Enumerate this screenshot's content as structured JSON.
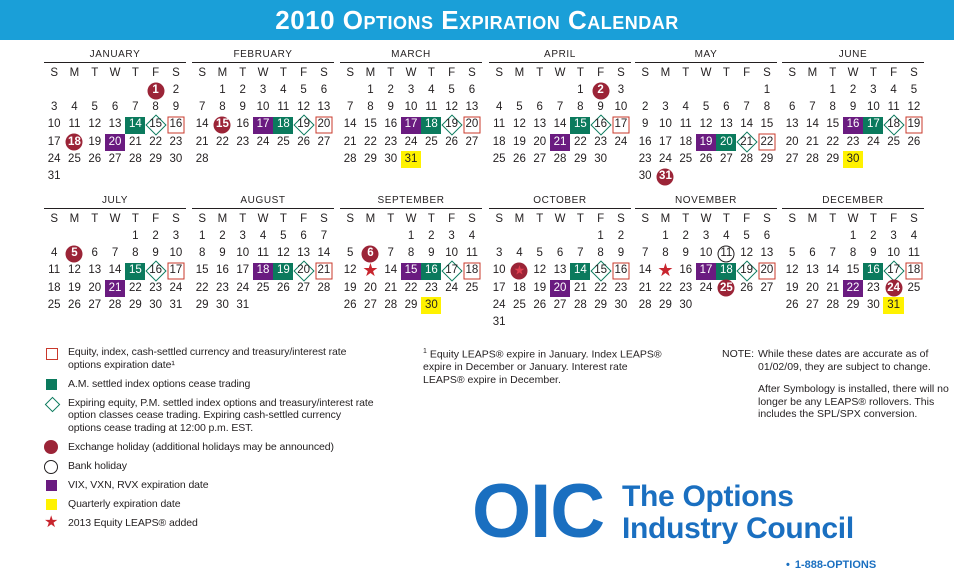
{
  "title": "2010 Options Expiration Calendar",
  "weekdays": [
    "S",
    "M",
    "T",
    "W",
    "T",
    "F",
    "S"
  ],
  "colors": {
    "banner": "#1a9fd8",
    "am_settled": "#0b7a5d",
    "vix": "#6a1b80",
    "quarterly": "#fff200",
    "holiday": "#9b2437",
    "star": "#c8252e",
    "brand": "#1a6fc0"
  },
  "months": [
    {
      "name": "JANUARY",
      "start": 5,
      "days": 31,
      "marks": {
        "1": "hol",
        "14": "sq",
        "15": "dia",
        "16": "exp",
        "18": "hol",
        "20": "pur"
      }
    },
    {
      "name": "FEBRUARY",
      "start": 1,
      "days": 28,
      "marks": {
        "15": "hol",
        "17": "pur",
        "18": "sq",
        "19": "dia",
        "20": "exp"
      }
    },
    {
      "name": "MARCH",
      "start": 1,
      "days": 31,
      "marks": {
        "17": "pur",
        "18": "sq",
        "19": "dia",
        "20": "exp",
        "31": "yel"
      }
    },
    {
      "name": "APRIL",
      "start": 4,
      "days": 30,
      "marks": {
        "2": "hol",
        "15": "sq",
        "16": "dia",
        "17": "exp",
        "21": "pur"
      }
    },
    {
      "name": "MAY",
      "start": 6,
      "days": 31,
      "marks": {
        "19": "pur",
        "20": "sq",
        "21": "dia",
        "22": "exp",
        "31": "hol"
      }
    },
    {
      "name": "JUNE",
      "start": 2,
      "days": 30,
      "marks": {
        "16": "pur",
        "17": "sq",
        "18": "dia",
        "19": "exp",
        "30": "yel"
      }
    },
    {
      "name": "JULY",
      "start": 4,
      "days": 31,
      "marks": {
        "5": "hol",
        "15": "sq",
        "16": "dia",
        "17": "exp",
        "21": "pur"
      }
    },
    {
      "name": "AUGUST",
      "start": 0,
      "days": 31,
      "marks": {
        "18": "pur",
        "19": "sq",
        "20": "dia",
        "21": "exp"
      }
    },
    {
      "name": "SEPTEMBER",
      "start": 3,
      "days": 30,
      "marks": {
        "6": "hol",
        "13": "star",
        "15": "pur",
        "16": "sq",
        "17": "dia",
        "18": "exp",
        "30": "yel"
      }
    },
    {
      "name": "OCTOBER",
      "start": 5,
      "days": 31,
      "marks": {
        "11": "star_hol",
        "14": "sq",
        "15": "dia",
        "16": "exp",
        "20": "pur"
      }
    },
    {
      "name": "NOVEMBER",
      "start": 1,
      "days": 30,
      "marks": {
        "11": "bank",
        "15": "star",
        "17": "pur",
        "18": "sq",
        "19": "dia",
        "20": "exp",
        "25": "hol"
      }
    },
    {
      "name": "DECEMBER",
      "start": 3,
      "days": 31,
      "marks": {
        "16": "sq",
        "17": "dia",
        "18": "exp",
        "22": "pur",
        "24": "hol",
        "31": "yel"
      }
    }
  ],
  "legend": [
    {
      "icon": "expiration-square-icon",
      "text": "Equity, index, cash-settled currency and treasury/interest rate options expiration date¹"
    },
    {
      "icon": "am-settled-square-icon",
      "text": "A.M. settled index options cease trading"
    },
    {
      "icon": "diamond-icon",
      "text": "Expiring equity, P.M. settled index options and treasury/interest rate option classes cease trading. Expiring cash-settled currency options cease trading at 12:00 p.m. EST."
    },
    {
      "icon": "holiday-circle-icon",
      "text": "Exchange holiday (additional holidays may be announced)"
    },
    {
      "icon": "bank-holiday-circle-icon",
      "text": "Bank holiday"
    },
    {
      "icon": "vix-square-icon",
      "text": "VIX, VXN, RVX expiration date"
    },
    {
      "icon": "quarterly-square-icon",
      "text": "Quarterly expiration date"
    },
    {
      "icon": "star-icon",
      "text": "2013 Equity LEAPS® added"
    }
  ],
  "footnote": {
    "mark": "1",
    "text": "Equity LEAPS® expire in January. Index LEAPS® expire in December or January. Interest rate LEAPS® expire in December."
  },
  "note": {
    "label": "NOTE:",
    "p1": "While these dates are accurate as of 01/02/09, they are subject to change.",
    "p2": "After Symbology is installed, there will no longer be any LEAPS® rollovers. This includes the SPL/SPX conversion."
  },
  "logo": {
    "mark": "OIC",
    "line1": "The Options",
    "line2": "Industry Council"
  },
  "phone": {
    "bullet": "•",
    "text": "1-888-OPTIONS"
  }
}
